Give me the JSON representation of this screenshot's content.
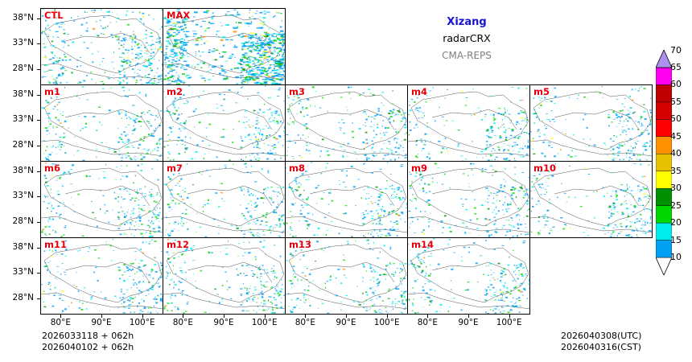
{
  "titles": {
    "region": "Xizang",
    "variable": "radarCRX",
    "model": "CMA-REPS"
  },
  "footer": {
    "init_utc": "2026033118  +  062h",
    "init_cst": "2026040102  +  062h",
    "valid_utc": "2026040308(UTC)",
    "valid_cst": "2026040316(CST)"
  },
  "chart_data": {
    "type": "heatmap",
    "title": "Xizang radarCRX CMA-REPS",
    "panels": [
      "CTL",
      "MAX",
      "m1",
      "m2",
      "m3",
      "m4",
      "m5",
      "m6",
      "m7",
      "m8",
      "m9",
      "m10",
      "m11",
      "m12",
      "m13",
      "m14"
    ],
    "lat_ticks": [
      "38°N",
      "33°N",
      "28°N"
    ],
    "lon_ticks": [
      "80°E",
      "90°E",
      "100°E"
    ],
    "lat_values": [
      38,
      33,
      28
    ],
    "lon_values": [
      80,
      90,
      100
    ],
    "lon_range": [
      75,
      105
    ],
    "lat_range": [
      25,
      40
    ],
    "colorbar": {
      "levels": [
        10,
        15,
        20,
        25,
        30,
        35,
        40,
        45,
        50,
        55,
        60,
        65,
        70
      ],
      "colors": [
        "#00a0f5",
        "#00ecec",
        "#00d800",
        "#009000",
        "#ffff00",
        "#e7c000",
        "#ff9000",
        "#ff0000",
        "#d60000",
        "#c00000",
        "#ff00f0",
        "#9600b4",
        "#ad90f0"
      ],
      "extend": "both"
    }
  }
}
